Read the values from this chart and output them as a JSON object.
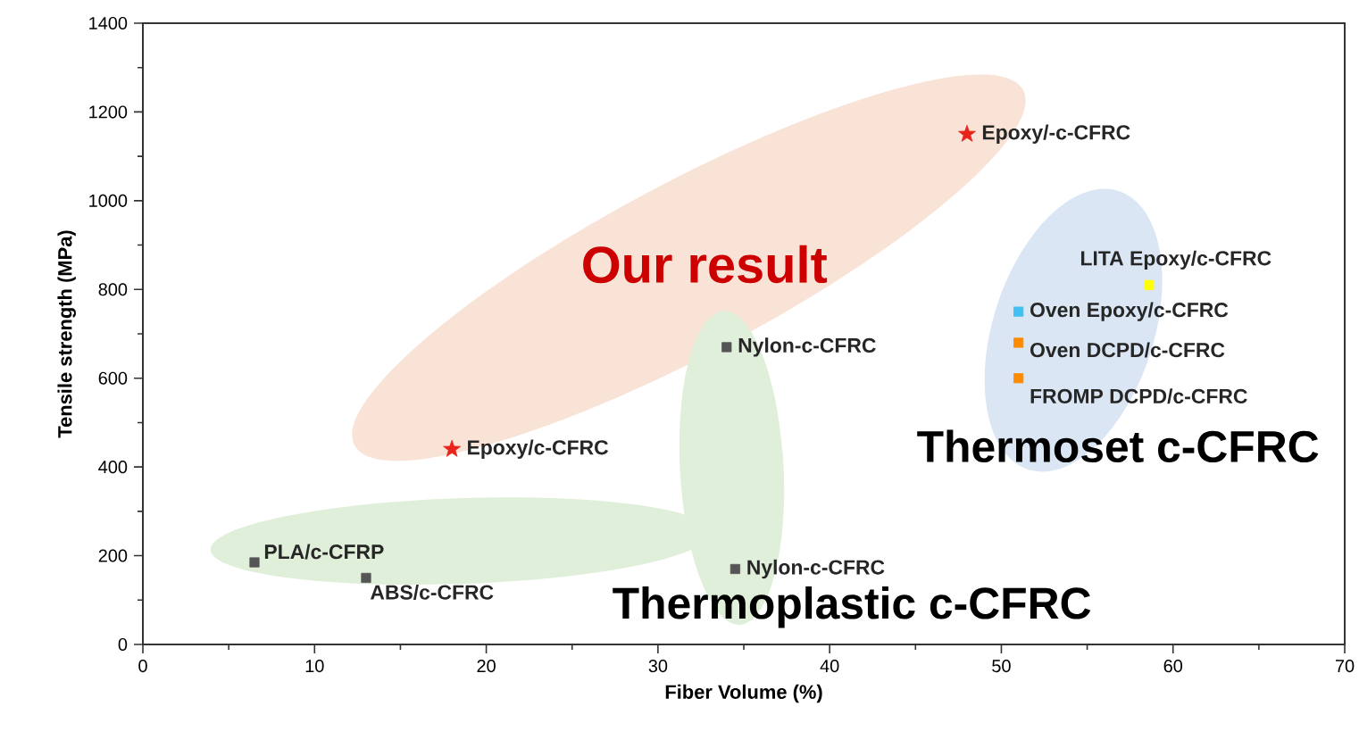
{
  "chart_data": {
    "type": "scatter",
    "xlabel": "Fiber Volume (%)",
    "ylabel": "Tensile strength (MPa)",
    "xlim": [
      0,
      70
    ],
    "ylim": [
      0,
      1400
    ],
    "xticks": [
      0,
      10,
      20,
      30,
      40,
      50,
      60,
      70
    ],
    "yticks": [
      0,
      200,
      400,
      600,
      800,
      1000,
      1200,
      1400
    ],
    "grid": false,
    "series": [
      {
        "name": "Epoxy/c-CFRC",
        "color": "#e8231a",
        "marker": "star",
        "x": [
          18
        ],
        "values": [
          440
        ]
      },
      {
        "name": "Epoxy/-c-CFRC",
        "color": "#e8231a",
        "marker": "star",
        "x": [
          48
        ],
        "values": [
          1150
        ]
      },
      {
        "name": "Nylon-c-CFRC",
        "color": "#555555",
        "marker": "square",
        "x": [
          34
        ],
        "values": [
          670
        ]
      },
      {
        "name": "Nylon-c-CFRC",
        "color": "#555555",
        "marker": "square",
        "x": [
          34.5
        ],
        "values": [
          170
        ]
      },
      {
        "name": "PLA/c-CFRP",
        "color": "#555555",
        "marker": "square",
        "x": [
          6.5
        ],
        "values": [
          185
        ]
      },
      {
        "name": "ABS/c-CFRC",
        "color": "#555555",
        "marker": "square",
        "x": [
          13
        ],
        "values": [
          150
        ]
      },
      {
        "name": "LITA Epoxy/c-CFRC",
        "color": "#ffff00",
        "marker": "square",
        "x": [
          58.6
        ],
        "values": [
          810
        ]
      },
      {
        "name": "Oven Epoxy/c-CFRC",
        "color": "#40c0f0",
        "marker": "square",
        "x": [
          51
        ],
        "values": [
          750
        ]
      },
      {
        "name": "Oven DCPD/c-CFRC",
        "color": "#ff8c00",
        "marker": "square",
        "x": [
          51
        ],
        "values": [
          680
        ]
      },
      {
        "name": "FROMP DCPD/c-CFRC",
        "color": "#ff8c00",
        "marker": "square",
        "x": [
          51
        ],
        "values": [
          600
        ]
      }
    ],
    "annotations": [
      "Our result",
      "Thermoset c-CFRC",
      "Thermoplastic c-CFRC"
    ]
  }
}
